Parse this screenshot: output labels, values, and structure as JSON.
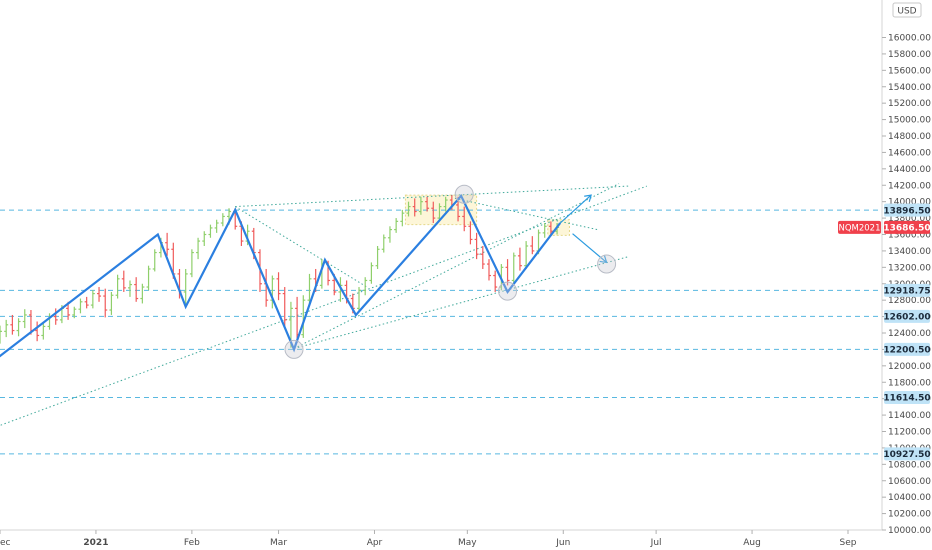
{
  "chart_data": {
    "type": "line",
    "title": "",
    "currency": "USD",
    "ylim": [
      10000,
      16300
    ],
    "yticks": [
      10000,
      10200,
      10400,
      10600,
      10800,
      11000,
      11200,
      11400,
      11600,
      11800,
      12000,
      12200,
      12400,
      12600,
      12800,
      13000,
      13200,
      13400,
      13600,
      13800,
      14000,
      14200,
      14400,
      14600,
      14800,
      15000,
      15200,
      15400,
      15600,
      15800,
      16000
    ],
    "ytick_labels": [
      "10000.00",
      "10200.00",
      "10400.00",
      "10600.00",
      "10800.00",
      "11000.00",
      "11200.00",
      "11400.00",
      "11600.00",
      "11800.00",
      "12000.00",
      "12200.00",
      "12400.00",
      "12600.00",
      "12800.00",
      "13000.00",
      "13200.00",
      "13400.00",
      "13600.00",
      "13800.00",
      "14000.00",
      "14200.00",
      "14400.00",
      "14600.00",
      "14800.00",
      "15000.00",
      "15200.00",
      "15400.00",
      "15600.00",
      "15800.00",
      "16000.00"
    ],
    "x_range": [
      "2020-12-01",
      "2021-09-30"
    ],
    "xticks": [
      {
        "date": "2020-12-01",
        "label": "ec"
      },
      {
        "date": "2021-01-01",
        "label": "2021"
      },
      {
        "date": "2021-02-01",
        "label": "Feb"
      },
      {
        "date": "2021-03-01",
        "label": "Mar"
      },
      {
        "date": "2021-04-01",
        "label": "Apr"
      },
      {
        "date": "2021-05-01",
        "label": "May"
      },
      {
        "date": "2021-06-01",
        "label": "Jun"
      },
      {
        "date": "2021-07-01",
        "label": "Jul"
      },
      {
        "date": "2021-08-01",
        "label": "Aug"
      },
      {
        "date": "2021-09-01",
        "label": "Sep"
      }
    ],
    "horizontal_levels": [
      {
        "value": 13896.5,
        "label": "13896.50"
      },
      {
        "value": 12918.75,
        "label": "12918.75"
      },
      {
        "value": 12602.0,
        "label": "12602.00"
      },
      {
        "value": 12200.5,
        "label": "12200.50"
      },
      {
        "value": 11614.5,
        "label": "11614.50"
      },
      {
        "value": 10927.5,
        "label": "10927.50"
      }
    ],
    "last_price": {
      "symbol": "NQM2021",
      "value": 13686.5,
      "label": "13686.50",
      "color": "#f0404b"
    },
    "zigzag": {
      "name": "",
      "color": "#2b7fe0",
      "points": [
        {
          "date": "2020-11-20",
          "value": 11800
        },
        {
          "date": "2021-01-21",
          "value": 13600
        },
        {
          "date": "2021-01-30",
          "value": 12720
        },
        {
          "date": "2021-02-15",
          "value": 13900
        },
        {
          "date": "2021-03-06",
          "value": 12200
        },
        {
          "date": "2021-03-16",
          "value": 13290
        },
        {
          "date": "2021-03-26",
          "value": 12620
        },
        {
          "date": "2021-04-29",
          "value": 14070
        },
        {
          "date": "2021-05-14",
          "value": 12900
        },
        {
          "date": "2021-05-31",
          "value": 13740
        }
      ]
    },
    "projections": [
      {
        "from": {
          "date": "2021-05-31",
          "value": 13740
        },
        "to": {
          "date": "2021-06-10",
          "value": 14080
        }
      },
      {
        "from": {
          "date": "2021-06-04",
          "value": 13610
        },
        "to": {
          "date": "2021-06-15",
          "value": 13260
        }
      }
    ],
    "trendlines": [
      {
        "from": {
          "date": "2020-11-30",
          "value": 11260
        },
        "to": {
          "date": "2021-06-28",
          "value": 14190
        }
      },
      {
        "from": {
          "date": "2021-03-06",
          "value": 12210
        },
        "to": {
          "date": "2021-06-19",
          "value": 14220
        }
      },
      {
        "from": {
          "date": "2021-03-06",
          "value": 12210
        },
        "to": {
          "date": "2021-06-22",
          "value": 13330
        }
      },
      {
        "from": {
          "date": "2021-02-15",
          "value": 13940
        },
        "to": {
          "date": "2021-03-30",
          "value": 12950
        }
      },
      {
        "from": {
          "date": "2021-02-15",
          "value": 13940
        },
        "to": {
          "date": "2021-06-22",
          "value": 14190
        }
      },
      {
        "from": {
          "date": "2021-04-27",
          "value": 14040
        },
        "to": {
          "date": "2021-06-12",
          "value": 13660
        }
      }
    ],
    "highlight_boxes": [
      {
        "from": "2021-04-11",
        "to": "2021-05-04",
        "top": 14080,
        "bottom": 13720
      },
      {
        "from": "2021-05-27",
        "to": "2021-06-03",
        "top": 13780,
        "bottom": 13590
      }
    ],
    "circles": [
      {
        "date": "2021-03-06",
        "value": 12200
      },
      {
        "date": "2021-04-30",
        "value": 14090
      },
      {
        "date": "2021-05-14",
        "value": 12910
      },
      {
        "date": "2021-06-15",
        "value": 13240
      }
    ],
    "bar_colors": {
      "up": "#8fcf6b",
      "down": "#f05a5a"
    },
    "ohlc_bars": [
      {
        "date": "2020-12-01",
        "open": 12370,
        "high": 12490,
        "low": 12270,
        "close": 12420
      },
      {
        "date": "2020-12-03",
        "open": 12420,
        "high": 12560,
        "low": 12350,
        "close": 12500
      },
      {
        "date": "2020-12-05",
        "open": 12500,
        "high": 12620,
        "low": 12380,
        "close": 12430
      },
      {
        "date": "2020-12-07",
        "open": 12430,
        "high": 12580,
        "low": 12360,
        "close": 12540
      },
      {
        "date": "2020-12-09",
        "open": 12540,
        "high": 12690,
        "low": 12460,
        "close": 12620
      },
      {
        "date": "2020-12-11",
        "open": 12620,
        "high": 12680,
        "low": 12380,
        "close": 12430
      },
      {
        "date": "2020-12-13",
        "open": 12430,
        "high": 12540,
        "low": 12300,
        "close": 12370
      },
      {
        "date": "2020-12-15",
        "open": 12370,
        "high": 12520,
        "low": 12320,
        "close": 12480
      },
      {
        "date": "2020-12-17",
        "open": 12480,
        "high": 12640,
        "low": 12440,
        "close": 12600
      },
      {
        "date": "2020-12-19",
        "open": 12600,
        "high": 12700,
        "low": 12500,
        "close": 12560
      },
      {
        "date": "2020-12-21",
        "open": 12560,
        "high": 12740,
        "low": 12520,
        "close": 12700
      },
      {
        "date": "2020-12-23",
        "open": 12700,
        "high": 12780,
        "low": 12560,
        "close": 12620
      },
      {
        "date": "2020-12-25",
        "open": 12620,
        "high": 12720,
        "low": 12580,
        "close": 12690
      },
      {
        "date": "2020-12-27",
        "open": 12690,
        "high": 12820,
        "low": 12640,
        "close": 12780
      },
      {
        "date": "2020-12-29",
        "open": 12780,
        "high": 12840,
        "low": 12700,
        "close": 12740
      },
      {
        "date": "2020-12-31",
        "open": 12740,
        "high": 12920,
        "low": 12700,
        "close": 12880
      },
      {
        "date": "2021-01-02",
        "open": 12880,
        "high": 12960,
        "low": 12780,
        "close": 12850
      },
      {
        "date": "2021-01-04",
        "open": 12850,
        "high": 12940,
        "low": 12590,
        "close": 12680
      },
      {
        "date": "2021-01-06",
        "open": 12680,
        "high": 12900,
        "low": 12620,
        "close": 12860
      },
      {
        "date": "2021-01-08",
        "open": 12860,
        "high": 13110,
        "low": 12820,
        "close": 13060
      },
      {
        "date": "2021-01-10",
        "open": 13060,
        "high": 13160,
        "low": 12900,
        "close": 12950
      },
      {
        "date": "2021-01-12",
        "open": 12950,
        "high": 13040,
        "low": 12840,
        "close": 12990
      },
      {
        "date": "2021-01-14",
        "open": 12990,
        "high": 13080,
        "low": 12780,
        "close": 12820
      },
      {
        "date": "2021-01-16",
        "open": 12820,
        "high": 13000,
        "low": 12760,
        "close": 12960
      },
      {
        "date": "2021-01-18",
        "open": 12960,
        "high": 13220,
        "low": 12920,
        "close": 13180
      },
      {
        "date": "2021-01-20",
        "open": 13180,
        "high": 13420,
        "low": 13150,
        "close": 13380
      },
      {
        "date": "2021-01-22",
        "open": 13380,
        "high": 13560,
        "low": 13320,
        "close": 13500
      },
      {
        "date": "2021-01-24",
        "open": 13500,
        "high": 13620,
        "low": 13340,
        "close": 13420
      },
      {
        "date": "2021-01-26",
        "open": 13420,
        "high": 13500,
        "low": 13060,
        "close": 13120
      },
      {
        "date": "2021-01-28",
        "open": 13120,
        "high": 13180,
        "low": 12820,
        "close": 12900
      },
      {
        "date": "2021-01-30",
        "open": 12900,
        "high": 13180,
        "low": 12740,
        "close": 13120
      },
      {
        "date": "2021-02-01",
        "open": 13120,
        "high": 13420,
        "low": 13080,
        "close": 13380
      },
      {
        "date": "2021-02-03",
        "open": 13380,
        "high": 13560,
        "low": 13300,
        "close": 13520
      },
      {
        "date": "2021-02-05",
        "open": 13520,
        "high": 13640,
        "low": 13460,
        "close": 13600
      },
      {
        "date": "2021-02-07",
        "open": 13600,
        "high": 13720,
        "low": 13560,
        "close": 13680
      },
      {
        "date": "2021-02-09",
        "open": 13680,
        "high": 13780,
        "low": 13620,
        "close": 13740
      },
      {
        "date": "2021-02-11",
        "open": 13740,
        "high": 13860,
        "low": 13700,
        "close": 13820
      },
      {
        "date": "2021-02-13",
        "open": 13820,
        "high": 13920,
        "low": 13720,
        "close": 13880
      },
      {
        "date": "2021-02-15",
        "open": 13880,
        "high": 13920,
        "low": 13660,
        "close": 13700
      },
      {
        "date": "2021-02-17",
        "open": 13700,
        "high": 13760,
        "low": 13460,
        "close": 13520
      },
      {
        "date": "2021-02-19",
        "open": 13520,
        "high": 13720,
        "low": 13470,
        "close": 13640
      },
      {
        "date": "2021-02-21",
        "open": 13640,
        "high": 13680,
        "low": 13300,
        "close": 13380
      },
      {
        "date": "2021-02-23",
        "open": 13380,
        "high": 13420,
        "low": 12900,
        "close": 13000
      },
      {
        "date": "2021-02-25",
        "open": 13000,
        "high": 13180,
        "low": 12720,
        "close": 12800
      },
      {
        "date": "2021-02-27",
        "open": 12800,
        "high": 13100,
        "low": 12700,
        "close": 13060
      },
      {
        "date": "2021-03-01",
        "open": 13060,
        "high": 13140,
        "low": 12800,
        "close": 12880
      },
      {
        "date": "2021-03-03",
        "open": 12880,
        "high": 12960,
        "low": 12480,
        "close": 12560
      },
      {
        "date": "2021-03-05",
        "open": 12560,
        "high": 12780,
        "low": 12220,
        "close": 12700
      },
      {
        "date": "2021-03-07",
        "open": 12700,
        "high": 12840,
        "low": 12280,
        "close": 12380
      },
      {
        "date": "2021-03-09",
        "open": 12380,
        "high": 12860,
        "low": 12340,
        "close": 12800
      },
      {
        "date": "2021-03-11",
        "open": 12800,
        "high": 13120,
        "low": 12760,
        "close": 13060
      },
      {
        "date": "2021-03-13",
        "open": 13060,
        "high": 13180,
        "low": 12900,
        "close": 12980
      },
      {
        "date": "2021-03-15",
        "open": 12980,
        "high": 13300,
        "low": 12940,
        "close": 13240
      },
      {
        "date": "2021-03-17",
        "open": 13240,
        "high": 13280,
        "low": 12980,
        "close": 13040
      },
      {
        "date": "2021-03-19",
        "open": 13040,
        "high": 13120,
        "low": 12860,
        "close": 12900
      },
      {
        "date": "2021-03-21",
        "open": 12900,
        "high": 13080,
        "low": 12780,
        "close": 12980
      },
      {
        "date": "2021-03-23",
        "open": 12980,
        "high": 13040,
        "low": 12760,
        "close": 12820
      },
      {
        "date": "2021-03-25",
        "open": 12820,
        "high": 12880,
        "low": 12640,
        "close": 12700
      },
      {
        "date": "2021-03-27",
        "open": 12700,
        "high": 12960,
        "low": 12660,
        "close": 12920
      },
      {
        "date": "2021-03-29",
        "open": 12920,
        "high": 13080,
        "low": 12860,
        "close": 13040
      },
      {
        "date": "2021-03-31",
        "open": 13040,
        "high": 13260,
        "low": 13000,
        "close": 13220
      },
      {
        "date": "2021-04-02",
        "open": 13220,
        "high": 13460,
        "low": 13180,
        "close": 13420
      },
      {
        "date": "2021-04-04",
        "open": 13420,
        "high": 13600,
        "low": 13380,
        "close": 13560
      },
      {
        "date": "2021-04-06",
        "open": 13560,
        "high": 13700,
        "low": 13500,
        "close": 13660
      },
      {
        "date": "2021-04-08",
        "open": 13660,
        "high": 13800,
        "low": 13620,
        "close": 13760
      },
      {
        "date": "2021-04-10",
        "open": 13760,
        "high": 13900,
        "low": 13700,
        "close": 13860
      },
      {
        "date": "2021-04-12",
        "open": 13860,
        "high": 14000,
        "low": 13820,
        "close": 13940
      },
      {
        "date": "2021-04-14",
        "open": 13940,
        "high": 14040,
        "low": 13820,
        "close": 13880
      },
      {
        "date": "2021-04-16",
        "open": 13880,
        "high": 14060,
        "low": 13840,
        "close": 14000
      },
      {
        "date": "2021-04-18",
        "open": 14000,
        "high": 14060,
        "low": 13880,
        "close": 13920
      },
      {
        "date": "2021-04-20",
        "open": 13920,
        "high": 14000,
        "low": 13740,
        "close": 13800
      },
      {
        "date": "2021-04-22",
        "open": 13800,
        "high": 13980,
        "low": 13760,
        "close": 13940
      },
      {
        "date": "2021-04-24",
        "open": 13940,
        "high": 14060,
        "low": 13880,
        "close": 14020
      },
      {
        "date": "2021-04-26",
        "open": 14020,
        "high": 14080,
        "low": 13900,
        "close": 13960
      },
      {
        "date": "2021-04-28",
        "open": 13960,
        "high": 14060,
        "low": 13760,
        "close": 13820
      },
      {
        "date": "2021-04-30",
        "open": 13820,
        "high": 13940,
        "low": 13640,
        "close": 13700
      },
      {
        "date": "2021-05-02",
        "open": 13700,
        "high": 13760,
        "low": 13480,
        "close": 13540
      },
      {
        "date": "2021-05-04",
        "open": 13540,
        "high": 13620,
        "low": 13300,
        "close": 13360
      },
      {
        "date": "2021-05-06",
        "open": 13360,
        "high": 13460,
        "low": 13180,
        "close": 13240
      },
      {
        "date": "2021-05-08",
        "open": 13240,
        "high": 13300,
        "low": 13040,
        "close": 13100
      },
      {
        "date": "2021-05-10",
        "open": 13100,
        "high": 13160,
        "low": 12900,
        "close": 12960
      },
      {
        "date": "2021-05-12",
        "open": 12960,
        "high": 13240,
        "low": 12920,
        "close": 13200
      },
      {
        "date": "2021-05-14",
        "open": 13200,
        "high": 13300,
        "low": 12980,
        "close": 13040
      },
      {
        "date": "2021-05-16",
        "open": 13040,
        "high": 13380,
        "low": 13000,
        "close": 13340
      },
      {
        "date": "2021-05-18",
        "open": 13340,
        "high": 13440,
        "low": 13160,
        "close": 13220
      },
      {
        "date": "2021-05-20",
        "open": 13220,
        "high": 13520,
        "low": 13180,
        "close": 13460
      },
      {
        "date": "2021-05-22",
        "open": 13460,
        "high": 13580,
        "low": 13360,
        "close": 13400
      },
      {
        "date": "2021-05-24",
        "open": 13400,
        "high": 13660,
        "low": 13360,
        "close": 13620
      },
      {
        "date": "2021-05-26",
        "open": 13620,
        "high": 13740,
        "low": 13560,
        "close": 13700
      },
      {
        "date": "2021-05-28",
        "open": 13700,
        "high": 13760,
        "low": 13580,
        "close": 13640
      },
      {
        "date": "2021-05-30",
        "open": 13640,
        "high": 13740,
        "low": 13600,
        "close": 13686.5
      }
    ]
  }
}
